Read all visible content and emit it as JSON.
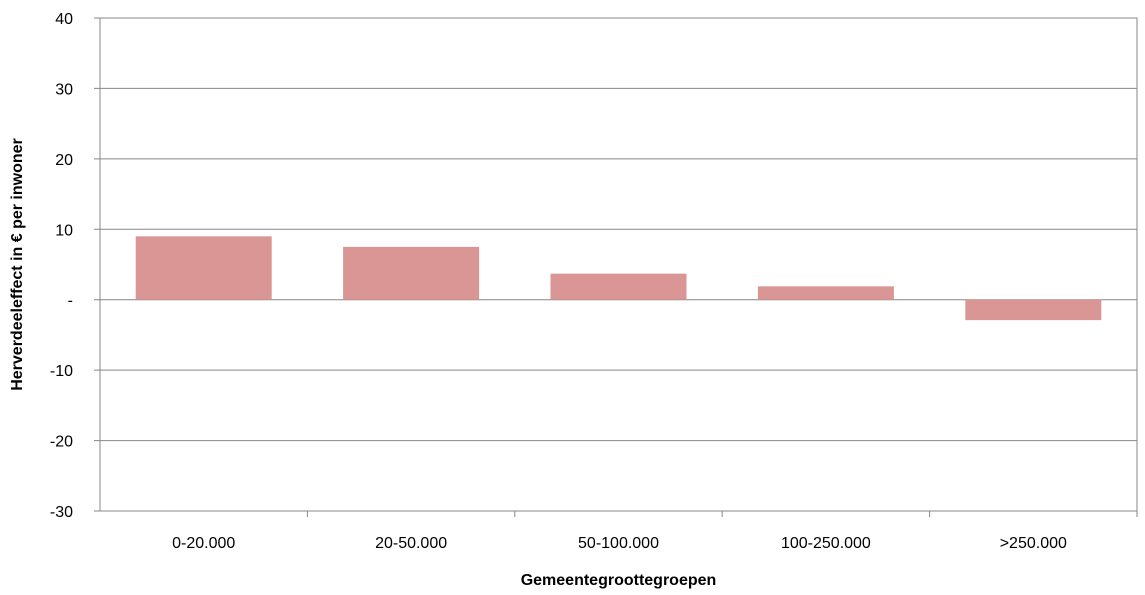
{
  "chart_data": {
    "type": "bar",
    "categories": [
      "0-20.000",
      "20-50.000",
      "50-100.000",
      "100-250.000",
      ">250.000"
    ],
    "values": [
      9,
      7.5,
      3.7,
      1.9,
      -2.9
    ],
    "xlabel": "Gemeentegroottegroepen",
    "ylabel": "Herverdeeleffect in € per inwoner",
    "ylim": [
      -30,
      40
    ],
    "yticks": [
      -30,
      -20,
      -10,
      0,
      10,
      20,
      30,
      40
    ],
    "ytick_labels": [
      "-30",
      "-20",
      "-10",
      "-",
      "10",
      "20",
      "30",
      "40"
    ],
    "grid": true,
    "legend": "none",
    "colors": {
      "bar": "#d99694",
      "grid": "#878787"
    }
  }
}
